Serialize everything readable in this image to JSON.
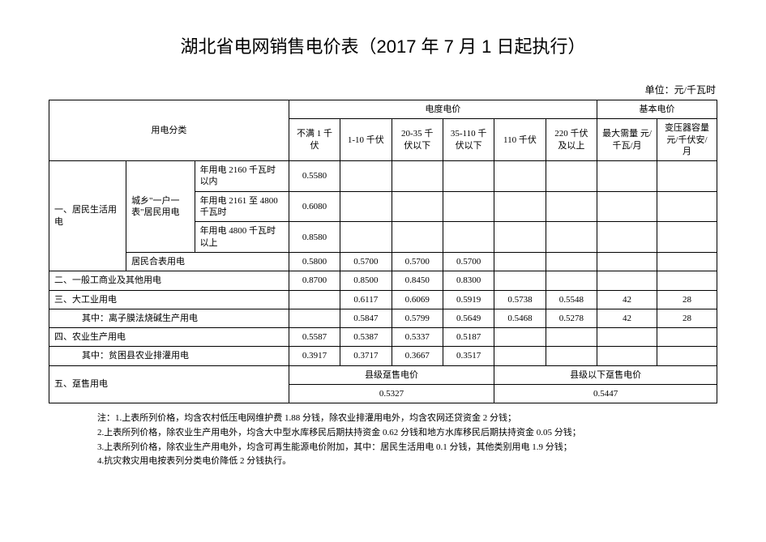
{
  "title": "湖北省电网销售电价表（2017 年 7 月 1 日起执行）",
  "unit_label": "单位：元/千瓦时",
  "headers": {
    "category": "用电分类",
    "energy_price": "电度电价",
    "basic_price": "基本电价",
    "col_lt1kv": "不满 1 千伏",
    "col_1_10": "1-10 千伏",
    "col_20_35": "20-35 千伏以下",
    "col_35_110": "35-110 千伏以下",
    "col_110": "110 千伏",
    "col_220up": "220 千伏及以上",
    "col_max_demand": "最大需量 元/千瓦/月",
    "col_transformer": "变压器容量 元/千伏安/月"
  },
  "rows": {
    "r1_cat": "一、居民生活用电",
    "r1_sub": "城乡\"一户一表\"居民用电",
    "r1_tier1_label": "年用电 2160 千瓦时以内",
    "r1_tier1_v": "0.5580",
    "r1_tier2_label": "年用电 2161 至 4800 千瓦时",
    "r1_tier2_v": "0.6080",
    "r1_tier3_label": "年用电 4800 千瓦时以上",
    "r1_tier3_v": "0.8580",
    "r1_shared_label": "居民合表用电",
    "r1_shared": [
      "0.5800",
      "0.5700",
      "0.5700",
      "0.5700"
    ],
    "r2_label": "二、一般工商业及其他用电",
    "r2": [
      "0.8700",
      "0.8500",
      "0.8450",
      "0.8300"
    ],
    "r3_label": "三、大工业用电",
    "r3": [
      "",
      "0.6117",
      "0.6069",
      "0.5919",
      "0.5738",
      "0.5548",
      "42",
      "28"
    ],
    "r3a_label": "其中：离子膜法烧碱生产用电",
    "r3a": [
      "",
      "0.5847",
      "0.5799",
      "0.5649",
      "0.5468",
      "0.5278",
      "42",
      "28"
    ],
    "r4_label": "四、农业生产用电",
    "r4": [
      "0.5587",
      "0.5387",
      "0.5337",
      "0.5187"
    ],
    "r4a_label": "其中：贫困县农业排灌用电",
    "r4a": [
      "0.3917",
      "0.3717",
      "0.3667",
      "0.3517"
    ],
    "r5_label": "五、趸售用电",
    "r5_county_label": "县级趸售电价",
    "r5_county_v": "0.5327",
    "r5_below_label": "县级以下趸售电价",
    "r5_below_v": "0.5447"
  },
  "notes": {
    "n1": "注：1.上表所列价格，均含农村低压电网维护费 1.88 分钱，除农业排灌用电外，均含农网还贷资金 2 分钱；",
    "n2": "2.上表所列价格，除农业生产用电外，均含大中型水库移民后期扶持资金 0.62 分钱和地方水库移民后期扶持资金 0.05 分钱；",
    "n3": "3.上表所列价格，除农业生产用电外，均含可再生能源电价附加，其中：居民生活用电 0.1 分钱，其他类别用电 1.9 分钱；",
    "n4": "4.抗灾救灾用电按表列分类电价降低 2 分钱执行。"
  }
}
